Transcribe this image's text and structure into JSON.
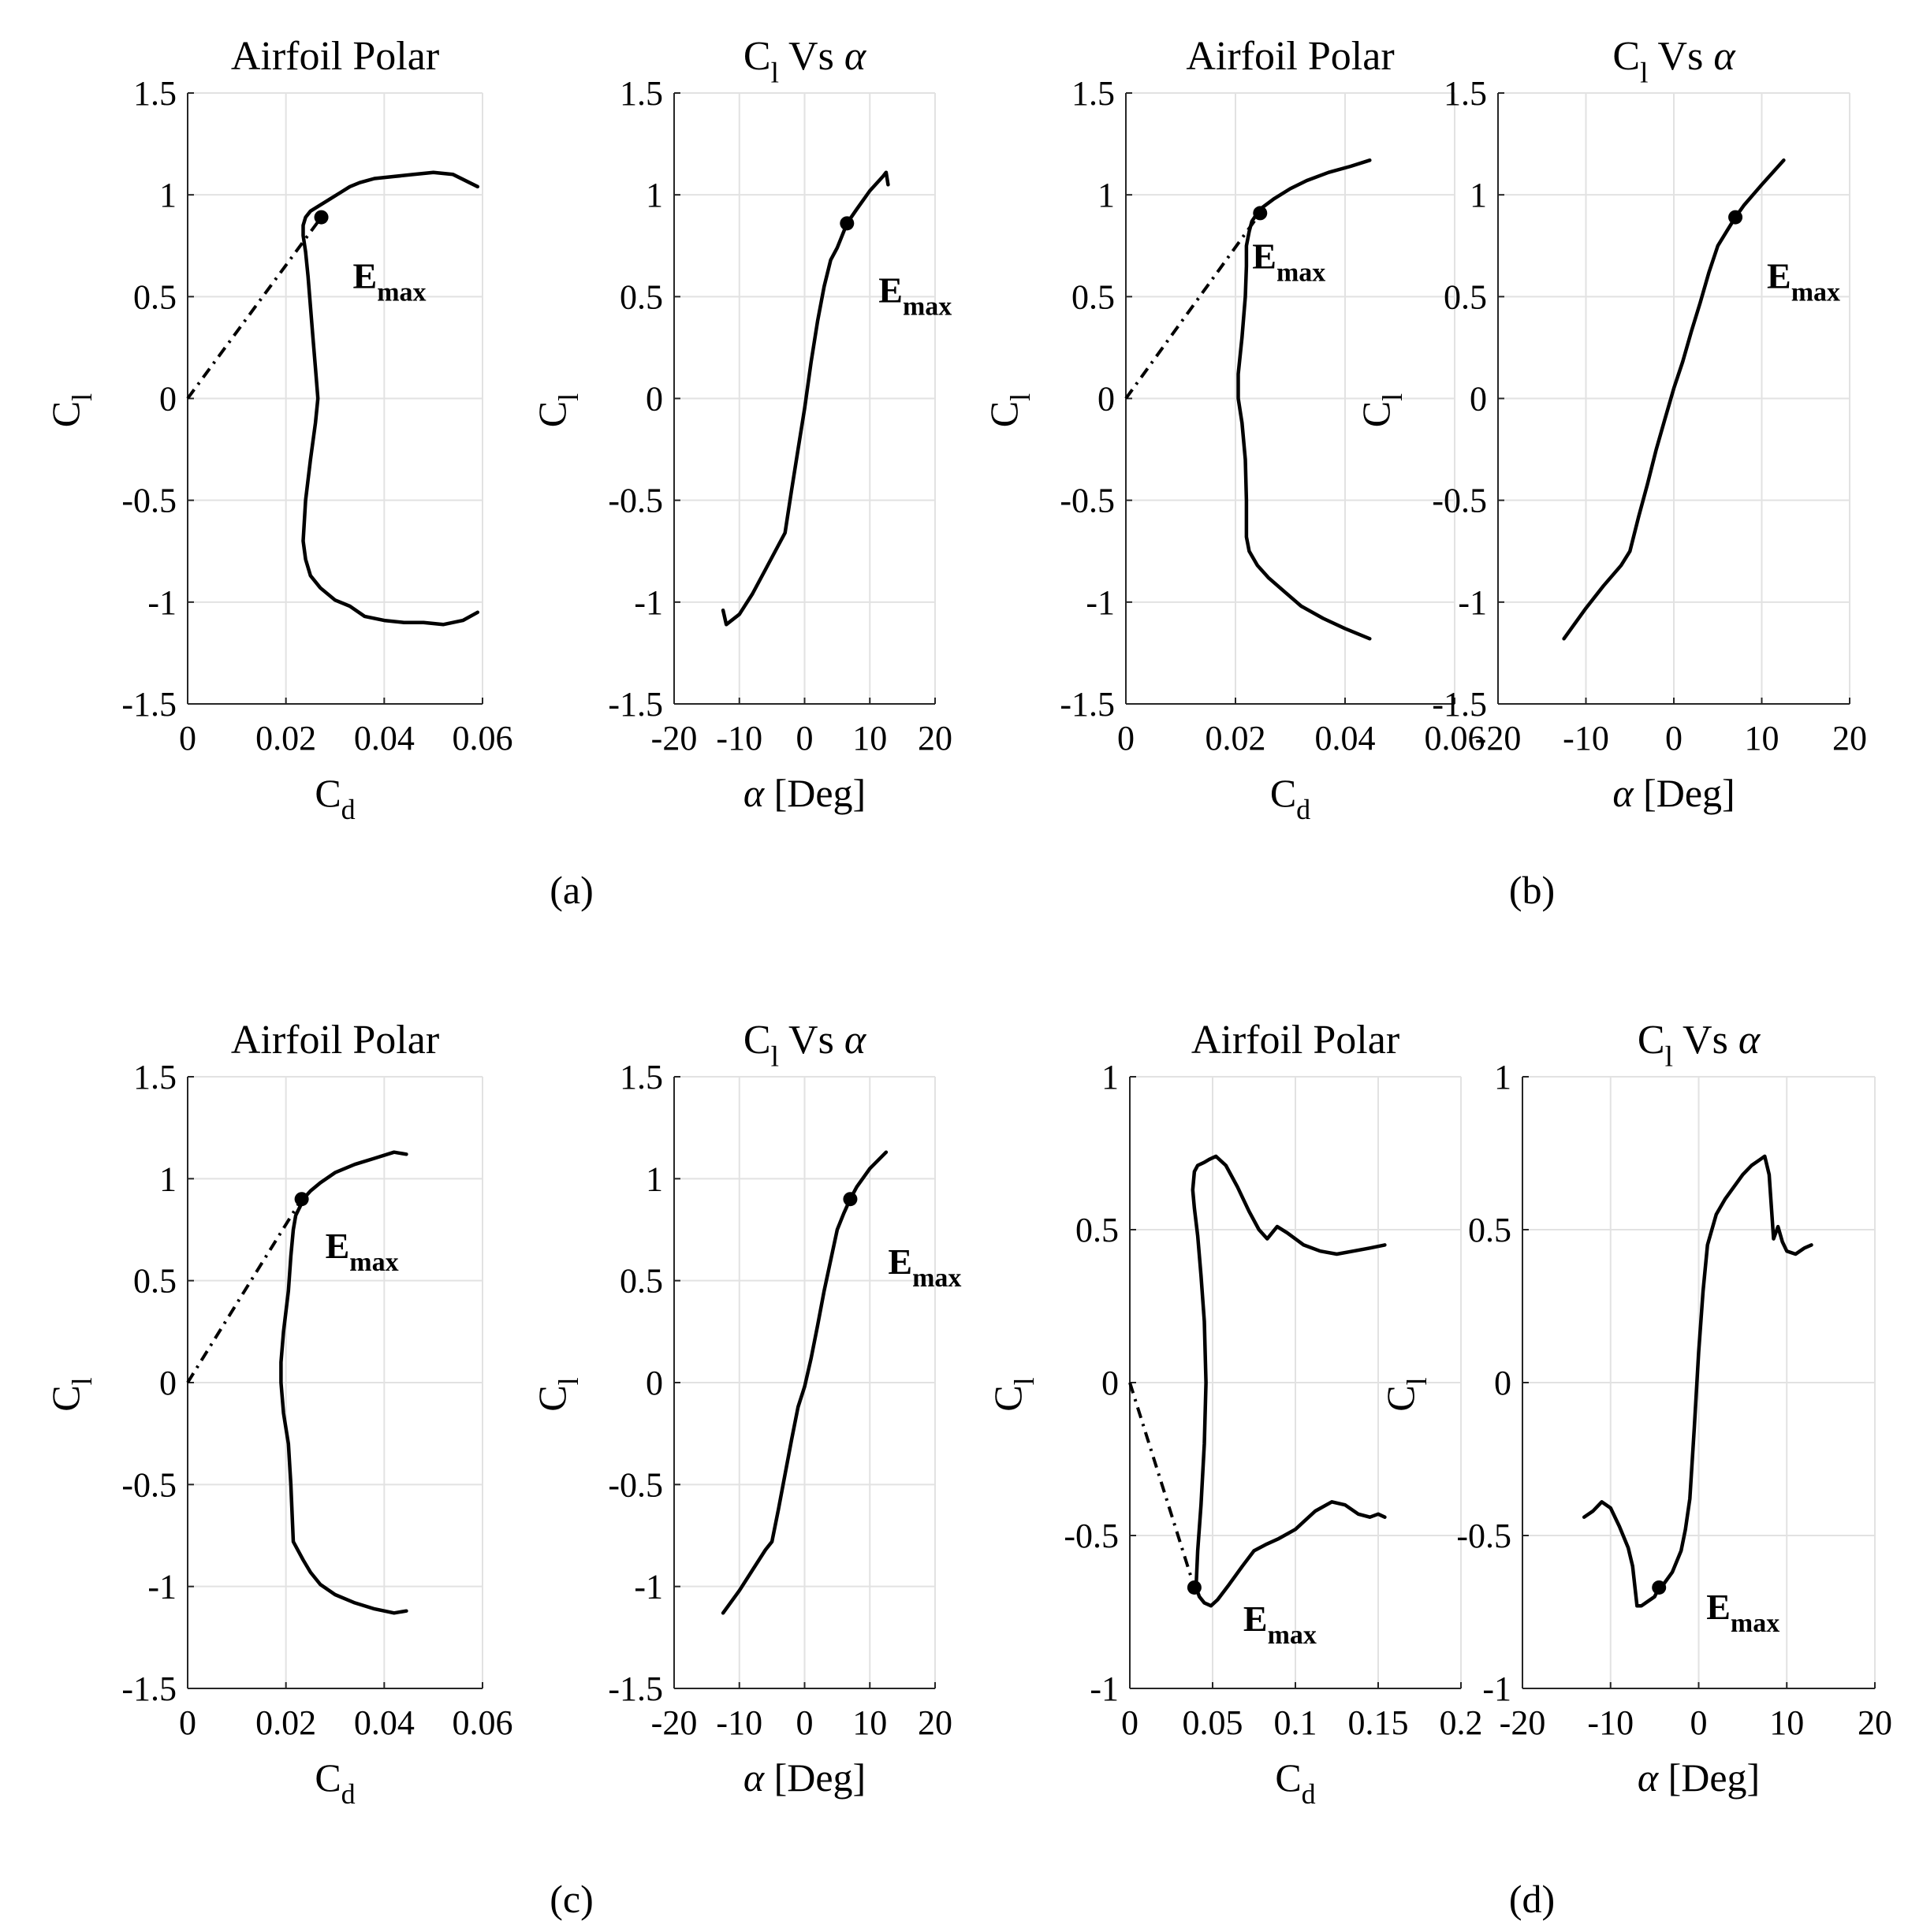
{
  "figure": {
    "panel_labels": [
      "(a)",
      "(b)",
      "(c)",
      "(d)"
    ]
  },
  "chart_data": [
    {
      "panel": "(a)",
      "type": "line",
      "title": "Airfoil Polar",
      "xlabel": "Cd",
      "ylabel": "Cl",
      "xlim": [
        0,
        0.06
      ],
      "ylim": [
        -1.5,
        1.5
      ],
      "xticks": [
        0,
        0.02,
        0.04,
        0.06
      ],
      "xtick_labels": [
        "0",
        "0.02",
        "0.04",
        "0.06"
      ],
      "yticks": [
        -1.5,
        -1,
        -0.5,
        0,
        0.5,
        1,
        1.5
      ],
      "ytick_labels": [
        "-1.5",
        "-1",
        "-0.5",
        "0",
        "0.5",
        "1",
        "1.5"
      ],
      "grid": true,
      "series": [
        {
          "name": "polar",
          "x": [
            0.059,
            0.056,
            0.052,
            0.048,
            0.044,
            0.04,
            0.036,
            0.033,
            0.03,
            0.027,
            0.025,
            0.024,
            0.0235,
            0.024,
            0.025,
            0.026,
            0.0265,
            0.026,
            0.0255,
            0.025,
            0.0245,
            0.024,
            0.0235,
            0.0235,
            0.024,
            0.025,
            0.027,
            0.029,
            0.031,
            0.033,
            0.035,
            0.038,
            0.042,
            0.046,
            0.05,
            0.054,
            0.059
          ],
          "y": [
            -1.05,
            -1.09,
            -1.11,
            -1.1,
            -1.1,
            -1.09,
            -1.07,
            -1.02,
            -0.99,
            -0.93,
            -0.87,
            -0.79,
            -0.7,
            -0.5,
            -0.3,
            -0.12,
            0.0,
            0.15,
            0.3,
            0.45,
            0.6,
            0.72,
            0.8,
            0.85,
            0.89,
            0.92,
            0.95,
            0.98,
            1.01,
            1.04,
            1.06,
            1.08,
            1.09,
            1.1,
            1.11,
            1.1,
            1.04
          ]
        }
      ],
      "tangent": {
        "x": [
          0,
          0.0272
        ],
        "y": [
          0,
          0.89
        ]
      },
      "marker": {
        "x": 0.0272,
        "y": 0.89,
        "label": "E",
        "label_sub": "max"
      }
    },
    {
      "panel": "(a)",
      "type": "line",
      "title": "Cl Vs α",
      "xlabel": "α [Deg]",
      "ylabel": "Cl",
      "xlim": [
        -20,
        20
      ],
      "ylim": [
        -1.5,
        1.5
      ],
      "xticks": [
        -20,
        -10,
        0,
        10,
        20
      ],
      "xtick_labels": [
        "-20",
        "-10",
        "0",
        "10",
        "20"
      ],
      "yticks": [
        -1.5,
        -1,
        -0.5,
        0,
        0.5,
        1,
        1.5
      ],
      "ytick_labels": [
        "-1.5",
        "-1",
        "-0.5",
        "0",
        "0.5",
        "1",
        "1.5"
      ],
      "grid": true,
      "series": [
        {
          "name": "lift",
          "x": [
            -12.5,
            -12,
            -10,
            -8,
            -6,
            -4,
            -3,
            -2,
            -1,
            0,
            1,
            2,
            3,
            4,
            5,
            6,
            6.5,
            8,
            10,
            12,
            12.5,
            12.8
          ],
          "y": [
            -1.04,
            -1.11,
            -1.06,
            -0.96,
            -0.84,
            -0.72,
            -0.66,
            -0.45,
            -0.25,
            -0.05,
            0.18,
            0.38,
            0.55,
            0.68,
            0.74,
            0.82,
            0.86,
            0.93,
            1.02,
            1.09,
            1.11,
            1.05
          ]
        }
      ],
      "marker": {
        "x": 6.5,
        "y": 0.86,
        "label": "E",
        "label_sub": "max"
      }
    },
    {
      "panel": "(b)",
      "type": "line",
      "title": "Airfoil Polar",
      "xlabel": "Cd",
      "ylabel": "Cl",
      "xlim": [
        0,
        0.06
      ],
      "ylim": [
        -1.5,
        1.5
      ],
      "xticks": [
        0,
        0.02,
        0.04,
        0.06
      ],
      "xtick_labels": [
        "0",
        "0.02",
        "0.04",
        "0.06"
      ],
      "yticks": [
        -1.5,
        -1,
        -0.5,
        0,
        0.5,
        1,
        1.5
      ],
      "ytick_labels": [
        "-1.5",
        "-1",
        "-0.5",
        "0",
        "0.5",
        "1",
        "1.5"
      ],
      "grid": true,
      "series": [
        {
          "name": "polar",
          "x": [
            0.0445,
            0.04,
            0.036,
            0.032,
            0.029,
            0.026,
            0.024,
            0.0225,
            0.022,
            0.022,
            0.0218,
            0.0212,
            0.0205,
            0.0205,
            0.0212,
            0.0218,
            0.022,
            0.022,
            0.0225,
            0.023,
            0.024,
            0.025,
            0.027,
            0.03,
            0.033,
            0.037,
            0.041,
            0.0445
          ],
          "y": [
            -1.18,
            -1.13,
            -1.08,
            -1.02,
            -0.95,
            -0.88,
            -0.82,
            -0.75,
            -0.68,
            -0.5,
            -0.3,
            -0.12,
            0.0,
            0.12,
            0.3,
            0.5,
            0.65,
            0.75,
            0.82,
            0.87,
            0.91,
            0.94,
            0.98,
            1.03,
            1.07,
            1.11,
            1.14,
            1.17
          ]
        }
      ],
      "tangent": {
        "x": [
          0,
          0.0245
        ],
        "y": [
          0,
          0.91
        ]
      },
      "marker": {
        "x": 0.0245,
        "y": 0.91,
        "label": "E",
        "label_sub": "max"
      }
    },
    {
      "panel": "(b)",
      "type": "line",
      "title": "Cl Vs α",
      "xlabel": "α [Deg]",
      "ylabel": "Cl",
      "xlim": [
        -20,
        20
      ],
      "ylim": [
        -1.5,
        1.5
      ],
      "xticks": [
        -20,
        -10,
        0,
        10,
        20
      ],
      "xtick_labels": [
        "-20",
        "-10",
        "0",
        "10",
        "20"
      ],
      "yticks": [
        -1.5,
        -1,
        -0.5,
        0,
        0.5,
        1,
        1.5
      ],
      "ytick_labels": [
        "-1.5",
        "-1",
        "-0.5",
        "0",
        "0.5",
        "1",
        "1.5"
      ],
      "grid": true,
      "series": [
        {
          "name": "lift",
          "x": [
            -12.5,
            -10,
            -8,
            -6,
            -5,
            -4,
            -3,
            -2,
            -1,
            0,
            1,
            2,
            3,
            4,
            5,
            6,
            7,
            8,
            10,
            12.5
          ],
          "y": [
            -1.18,
            -1.03,
            -0.92,
            -0.82,
            -0.75,
            -0.58,
            -0.42,
            -0.25,
            -0.1,
            0.05,
            0.18,
            0.33,
            0.47,
            0.62,
            0.75,
            0.82,
            0.89,
            0.95,
            1.05,
            1.17
          ]
        }
      ],
      "marker": {
        "x": 7,
        "y": 0.89,
        "label": "E",
        "label_sub": "max"
      }
    },
    {
      "panel": "(c)",
      "type": "line",
      "title": "Airfoil Polar",
      "xlabel": "Cd",
      "ylabel": "Cl",
      "xlim": [
        0,
        0.06
      ],
      "ylim": [
        -1.5,
        1.5
      ],
      "xticks": [
        0,
        0.02,
        0.04,
        0.06
      ],
      "xtick_labels": [
        "0",
        "0.02",
        "0.04",
        "0.06"
      ],
      "yticks": [
        -1.5,
        -1,
        -0.5,
        0,
        0.5,
        1,
        1.5
      ],
      "ytick_labels": [
        "-1.5",
        "-1",
        "-0.5",
        "0",
        "0.5",
        "1",
        "1.5"
      ],
      "grid": true,
      "series": [
        {
          "name": "polar",
          "x": [
            0.0445,
            0.042,
            0.038,
            0.034,
            0.03,
            0.027,
            0.025,
            0.0235,
            0.0215,
            0.021,
            0.0205,
            0.0195,
            0.019,
            0.019,
            0.0195,
            0.0205,
            0.021,
            0.0215,
            0.022,
            0.023,
            0.0235,
            0.025,
            0.027,
            0.03,
            0.034,
            0.038,
            0.042,
            0.0445
          ],
          "y": [
            -1.12,
            -1.13,
            -1.11,
            -1.08,
            -1.04,
            -0.99,
            -0.93,
            -0.87,
            -0.78,
            -0.5,
            -0.3,
            -0.15,
            0.0,
            0.1,
            0.25,
            0.45,
            0.62,
            0.75,
            0.82,
            0.87,
            0.9,
            0.94,
            0.98,
            1.03,
            1.07,
            1.1,
            1.13,
            1.12
          ]
        }
      ],
      "tangent": {
        "x": [
          0,
          0.0232
        ],
        "y": [
          0,
          0.9
        ]
      },
      "marker": {
        "x": 0.0232,
        "y": 0.9,
        "label": "E",
        "label_sub": "max"
      }
    },
    {
      "panel": "(c)",
      "type": "line",
      "title": "Cl Vs α",
      "xlabel": "α [Deg]",
      "ylabel": "Cl",
      "xlim": [
        -20,
        20
      ],
      "ylim": [
        -1.5,
        1.5
      ],
      "xticks": [
        -20,
        -10,
        0,
        10,
        20
      ],
      "xtick_labels": [
        "-20",
        "-10",
        "0",
        "10",
        "20"
      ],
      "yticks": [
        -1.5,
        -1,
        -0.5,
        0,
        0.5,
        1,
        1.5
      ],
      "ytick_labels": [
        "-1.5",
        "-1",
        "-0.5",
        "0",
        "0.5",
        "1",
        "1.5"
      ],
      "grid": true,
      "series": [
        {
          "name": "lift",
          "x": [
            -12.5,
            -10,
            -8,
            -6,
            -5,
            -4,
            -3,
            -2,
            -1,
            0,
            1,
            2,
            3,
            4,
            5,
            6,
            7,
            8,
            10,
            12.5
          ],
          "y": [
            -1.13,
            -1.02,
            -0.92,
            -0.82,
            -0.78,
            -0.62,
            -0.45,
            -0.28,
            -0.12,
            -0.02,
            0.12,
            0.28,
            0.45,
            0.6,
            0.75,
            0.83,
            0.9,
            0.96,
            1.05,
            1.13
          ]
        }
      ],
      "marker": {
        "x": 7,
        "y": 0.9,
        "label": "E",
        "label_sub": "max"
      }
    },
    {
      "panel": "(d)",
      "type": "line",
      "title": "Airfoil Polar",
      "xlabel": "Cd",
      "ylabel": "Cl",
      "xlim": [
        0,
        0.2
      ],
      "ylim": [
        -1,
        1
      ],
      "xticks": [
        0,
        0.05,
        0.1,
        0.15,
        0.2
      ],
      "xtick_labels": [
        "0",
        "0.05",
        "0.1",
        "0.15",
        "0.2"
      ],
      "yticks": [
        -1,
        -0.5,
        0,
        0.5,
        1
      ],
      "ytick_labels": [
        "-1",
        "-0.5",
        "0",
        "0.5",
        "1"
      ],
      "grid": true,
      "series": [
        {
          "name": "polar",
          "x": [
            0.154,
            0.15,
            0.145,
            0.138,
            0.13,
            0.122,
            0.112,
            0.1,
            0.09,
            0.082,
            0.075,
            0.068,
            0.06,
            0.053,
            0.049,
            0.045,
            0.042,
            0.04,
            0.041,
            0.043,
            0.045,
            0.046,
            0.045,
            0.043,
            0.041,
            0.039,
            0.038,
            0.039,
            0.041,
            0.045,
            0.048,
            0.052,
            0.058,
            0.065,
            0.072,
            0.078,
            0.083,
            0.089,
            0.095,
            0.105,
            0.115,
            0.125,
            0.135,
            0.145,
            0.154
          ],
          "y": [
            -0.44,
            -0.43,
            -0.44,
            -0.43,
            -0.4,
            -0.39,
            -0.42,
            -0.48,
            -0.51,
            -0.53,
            -0.55,
            -0.6,
            -0.66,
            -0.71,
            -0.73,
            -0.72,
            -0.7,
            -0.67,
            -0.55,
            -0.4,
            -0.2,
            0.0,
            0.2,
            0.35,
            0.48,
            0.57,
            0.63,
            0.69,
            0.71,
            0.72,
            0.73,
            0.74,
            0.71,
            0.64,
            0.56,
            0.5,
            0.47,
            0.51,
            0.49,
            0.45,
            0.43,
            0.42,
            0.43,
            0.44,
            0.45
          ]
        }
      ],
      "tangent": {
        "x": [
          0,
          0.039
        ],
        "y": [
          0,
          -0.67
        ]
      },
      "marker": {
        "x": 0.039,
        "y": -0.67,
        "label": "E",
        "label_sub": "max"
      }
    },
    {
      "panel": "(d)",
      "type": "line",
      "title": "Cl Vs α",
      "xlabel": "α [Deg]",
      "ylabel": "Cl",
      "xlim": [
        -20,
        20
      ],
      "ylim": [
        -1,
        1
      ],
      "xticks": [
        -20,
        -10,
        0,
        10,
        20
      ],
      "xtick_labels": [
        "-20",
        "-10",
        "0",
        "10",
        "20"
      ],
      "yticks": [
        -1,
        -0.5,
        0,
        0.5,
        1
      ],
      "ytick_labels": [
        "-1",
        "-0.5",
        "0",
        "0.5",
        "1"
      ],
      "grid": true,
      "series": [
        {
          "name": "lift",
          "x": [
            -13,
            -12,
            -11,
            -10,
            -9,
            -8,
            -7.5,
            -7,
            -6.5,
            -6,
            -5,
            -4.5,
            -4,
            -3,
            -2,
            -1.5,
            -1,
            -0.5,
            0,
            0.5,
            1,
            2,
            3,
            4,
            5,
            6,
            7,
            7.5,
            8,
            8.5,
            9,
            9.5,
            10,
            11,
            12,
            12.8
          ],
          "y": [
            -0.44,
            -0.42,
            -0.39,
            -0.41,
            -0.47,
            -0.54,
            -0.6,
            -0.73,
            -0.73,
            -0.72,
            -0.7,
            -0.67,
            -0.66,
            -0.62,
            -0.55,
            -0.48,
            -0.38,
            -0.15,
            0.1,
            0.3,
            0.45,
            0.55,
            0.6,
            0.64,
            0.68,
            0.71,
            0.73,
            0.74,
            0.68,
            0.47,
            0.51,
            0.46,
            0.43,
            0.42,
            0.44,
            0.45
          ]
        }
      ],
      "marker": {
        "x": -4.5,
        "y": -0.67,
        "label": "E",
        "label_sub": "max"
      }
    }
  ]
}
